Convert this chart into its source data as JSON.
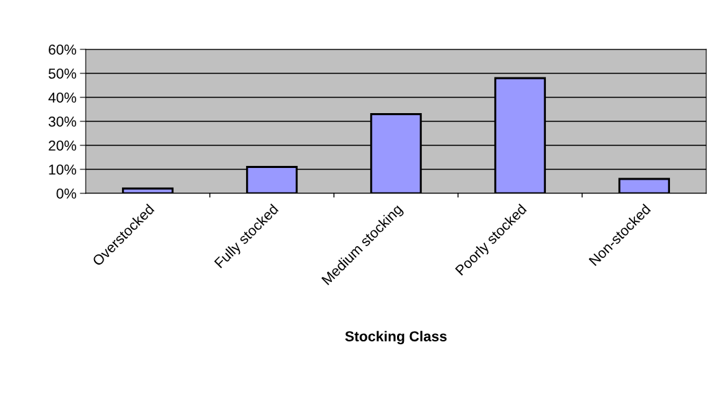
{
  "chart_data": {
    "type": "bar",
    "xlabel": "Stocking Class",
    "categories": [
      "Overstocked",
      "Fully stocked",
      "Medium stocking",
      "Poorly stocked",
      "Non-stocked"
    ],
    "values": [
      2,
      11,
      33,
      48,
      6
    ],
    "color": "#9999ff",
    "ylim": [
      0,
      60
    ],
    "yticks": [
      {
        "value": 0,
        "label": "0%"
      },
      {
        "value": 10,
        "label": "10%"
      },
      {
        "value": 20,
        "label": "20%"
      },
      {
        "value": 30,
        "label": "30%"
      },
      {
        "value": 40,
        "label": "40%"
      },
      {
        "value": 50,
        "label": "50%"
      },
      {
        "value": 60,
        "label": "60%"
      }
    ],
    "grid": "y"
  }
}
